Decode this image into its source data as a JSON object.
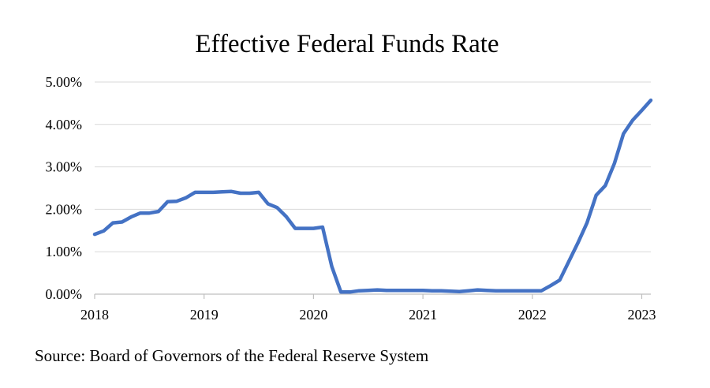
{
  "chart_data": {
    "type": "line",
    "title": "Effective Federal Funds Rate",
    "source": "Source: Board of Governors of the Federal Reserve System",
    "xlabel": "",
    "ylabel": "",
    "xlim": [
      2018.0,
      2023.083
    ],
    "ylim": [
      0,
      5
    ],
    "grid": true,
    "y_ticks": [
      {
        "value": 0,
        "label": "0.00%"
      },
      {
        "value": 1,
        "label": "1.00%"
      },
      {
        "value": 2,
        "label": "2.00%"
      },
      {
        "value": 3,
        "label": "3.00%"
      },
      {
        "value": 4,
        "label": "4.00%"
      },
      {
        "value": 5,
        "label": "5.00%"
      }
    ],
    "x_ticks": [
      {
        "value": 2018,
        "label": "2018"
      },
      {
        "value": 2019,
        "label": "2019"
      },
      {
        "value": 2020,
        "label": "2020"
      },
      {
        "value": 2021,
        "label": "2021"
      },
      {
        "value": 2022,
        "label": "2022"
      },
      {
        "value": 2023,
        "label": "2023"
      }
    ],
    "line_color": "#4472c4",
    "series": [
      {
        "x": [
          2018.0,
          2018.083,
          2018.167,
          2018.25,
          2018.333,
          2018.417,
          2018.5,
          2018.583,
          2018.667,
          2018.75,
          2018.833,
          2018.917,
          2019.0,
          2019.083,
          2019.167,
          2019.25,
          2019.333,
          2019.417,
          2019.5,
          2019.583,
          2019.667,
          2019.75,
          2019.833,
          2019.917,
          2020.0,
          2020.083,
          2020.167,
          2020.25,
          2020.333,
          2020.417,
          2020.5,
          2020.583,
          2020.667,
          2020.75,
          2020.833,
          2020.917,
          2021.0,
          2021.083,
          2021.167,
          2021.25,
          2021.333,
          2021.417,
          2021.5,
          2021.583,
          2021.667,
          2021.75,
          2021.833,
          2021.917,
          2022.0,
          2022.083,
          2022.167,
          2022.25,
          2022.333,
          2022.417,
          2022.5,
          2022.583,
          2022.667,
          2022.75,
          2022.833,
          2022.917,
          2023.0,
          2023.083
        ],
        "values": [
          1.41,
          1.49,
          1.68,
          1.7,
          1.82,
          1.91,
          1.91,
          1.95,
          2.18,
          2.19,
          2.27,
          2.4,
          2.4,
          2.4,
          2.41,
          2.42,
          2.38,
          2.38,
          2.4,
          2.13,
          2.04,
          1.83,
          1.55,
          1.55,
          1.55,
          1.58,
          0.65,
          0.05,
          0.05,
          0.08,
          0.09,
          0.1,
          0.09,
          0.09,
          0.09,
          0.09,
          0.09,
          0.08,
          0.08,
          0.07,
          0.06,
          0.08,
          0.1,
          0.09,
          0.08,
          0.08,
          0.08,
          0.08,
          0.08,
          0.08,
          0.2,
          0.33,
          0.77,
          1.21,
          1.68,
          2.33,
          2.56,
          3.08,
          3.78,
          4.1,
          4.33,
          4.57
        ]
      }
    ]
  }
}
